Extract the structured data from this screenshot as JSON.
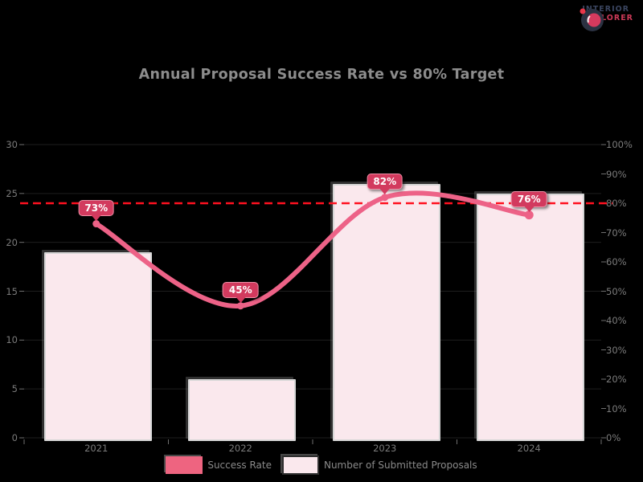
{
  "logo": {
    "line1": "INTERIOR",
    "line2": "EXPLORER"
  },
  "title": "Annual Proposal Success Rate vs 80% Target",
  "chart_data": {
    "type": "bar+line",
    "background": "#000000",
    "categories": [
      "2021",
      "2022",
      "2023",
      "2024"
    ],
    "series": [
      {
        "name": "Number of Submitted Proposals",
        "type": "bar",
        "axis": "left",
        "values": [
          19,
          6,
          26,
          25
        ],
        "color": "#fae8ed",
        "border_color": "#d6d6d6"
      },
      {
        "name": "Success Rate",
        "type": "line",
        "axis": "right",
        "values": [
          73,
          45,
          82,
          76
        ],
        "point_labels": [
          "73%",
          "45%",
          "82%",
          "76%"
        ],
        "color": "#ed6287",
        "badge_color": "#d23a5e"
      }
    ],
    "target_line": {
      "value": 80,
      "axis": "right",
      "color": "#ff1120",
      "style": "dashed"
    },
    "axes": {
      "left": {
        "min": 0,
        "max": 30,
        "tick_labels": [
          "30",
          "25",
          "20",
          "15",
          "10",
          "5",
          "0"
        ]
      },
      "right": {
        "min": 0,
        "max": 100,
        "tick_labels": [
          "100%",
          "90%",
          "80%",
          "70%",
          "60%",
          "50%",
          "40%",
          "30%",
          "20%",
          "10%",
          "0%"
        ]
      }
    },
    "legend": {
      "position": "bottom",
      "items": [
        {
          "label": "Success Rate",
          "swatch_color": "#ee6480"
        },
        {
          "label": "Number of Submitted Proposals",
          "swatch_color": "#fae8ed"
        }
      ]
    },
    "grid": true
  }
}
